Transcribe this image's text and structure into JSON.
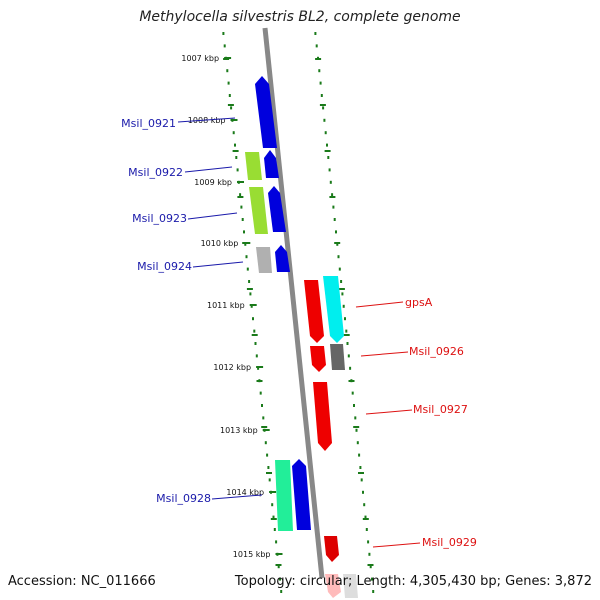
{
  "title": "Methylocella silvestris BL2, complete genome",
  "footer": {
    "accession": "Accession: NC_011666",
    "topology": "Topology: circular; Length: 4,305,430 bp; Genes: 3,872"
  },
  "colors": {
    "backbone": "#888888",
    "ruler": "#1a7a1a",
    "label_left": "#1a1aaa",
    "label_right": "#dd1111"
  },
  "ruler_labels": [
    "1007 kbp",
    "1008 kbp",
    "1009 kbp",
    "1010 kbp",
    "1011 kbp",
    "1012 kbp",
    "1013 kbp",
    "1014 kbp",
    "1015 kbp"
  ],
  "genes_left": [
    {
      "label": "Msil_0921"
    },
    {
      "label": "Msil_0922"
    },
    {
      "label": "Msil_0923"
    },
    {
      "label": "Msil_0924"
    },
    {
      "label": "Msil_0928"
    }
  ],
  "genes_right": [
    {
      "label": "gpsA"
    },
    {
      "label": "Msil_0926"
    },
    {
      "label": "Msil_0927"
    },
    {
      "label": "Msil_0929"
    }
  ]
}
